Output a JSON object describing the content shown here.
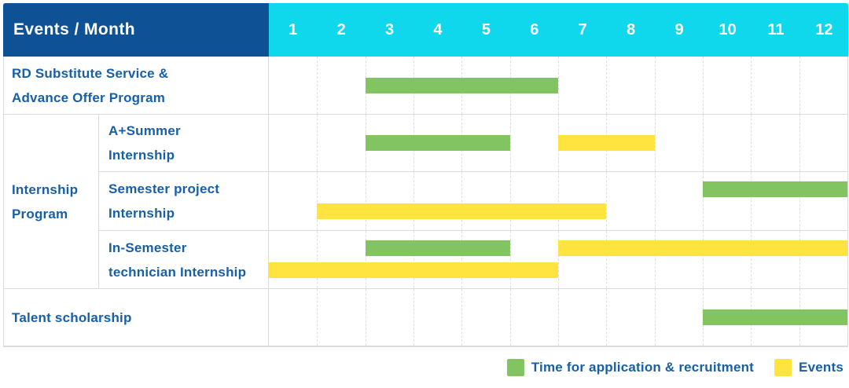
{
  "header": {
    "title": "Events / Month",
    "months": [
      "1",
      "2",
      "3",
      "4",
      "5",
      "6",
      "7",
      "8",
      "9",
      "10",
      "11",
      "12"
    ]
  },
  "colors": {
    "header_bg": "#0E5295",
    "months_bg": "#0FD7EC",
    "text_blue": "#185FA6",
    "recruitment_green": "#82C462",
    "event_yellow": "#FFE33F",
    "grid_line": "#DEDEDE",
    "row_line": "#DBDBDB"
  },
  "group_label_lines": [
    "Internship",
    "Program"
  ],
  "chart_data": {
    "type": "gantt",
    "x_unit": "month",
    "x_range": [
      1,
      12
    ],
    "grid": "dashed-vertical",
    "rows": [
      {
        "label": "RD Substitute Service & Advance Offer Program",
        "label_lines": [
          "RD Substitute Service &",
          "Advance Offer Program"
        ],
        "group": "",
        "bars": [
          {
            "type": "recruitment",
            "start_month": 3,
            "end_month": 6,
            "lane": "center"
          }
        ]
      },
      {
        "label": "A+Summer Internship",
        "label_lines": [
          "A+Summer",
          "Internship"
        ],
        "group": "Internship Program",
        "bars": [
          {
            "type": "recruitment",
            "start_month": 3,
            "end_month": 5,
            "lane": "center"
          },
          {
            "type": "event",
            "start_month": 7,
            "end_month": 8,
            "lane": "center"
          }
        ]
      },
      {
        "label": "Semester project Internship",
        "label_lines": [
          "Semester project",
          "Internship"
        ],
        "group": "Internship Program",
        "bars": [
          {
            "type": "recruitment",
            "start_month": 10,
            "end_month": 12,
            "lane": "top"
          },
          {
            "type": "event",
            "start_month": 2,
            "end_month": 7,
            "lane": "bottom"
          }
        ]
      },
      {
        "label": "In-Semester technician Internship",
        "label_lines": [
          "In-Semester",
          "technician Internship"
        ],
        "group": "Internship Program",
        "bars": [
          {
            "type": "recruitment",
            "start_month": 3,
            "end_month": 5,
            "lane": "top"
          },
          {
            "type": "event",
            "start_month": 7,
            "end_month": 12,
            "lane": "top"
          },
          {
            "type": "event",
            "start_month": 1,
            "end_month": 6,
            "lane": "bottom"
          }
        ]
      },
      {
        "label": "Talent scholarship",
        "label_lines": [
          "Talent scholarship"
        ],
        "group": "",
        "bars": [
          {
            "type": "recruitment",
            "start_month": 10,
            "end_month": 12,
            "lane": "center"
          }
        ]
      }
    ],
    "legend": [
      {
        "type": "recruitment",
        "label": "Time for application & recruitment",
        "color": "#82C462"
      },
      {
        "type": "event",
        "label": "Events",
        "color": "#FFE33F"
      }
    ],
    "legend_position": "bottom-right"
  }
}
